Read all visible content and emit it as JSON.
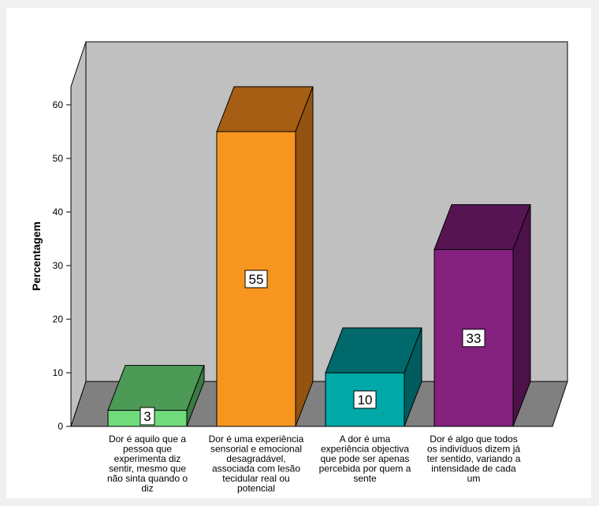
{
  "chart_data": {
    "type": "bar",
    "subtype": "3d-column",
    "title": "",
    "xlabel": "",
    "ylabel": "Percentagem",
    "ylim": [
      0,
      60
    ],
    "yticks": [
      0,
      10,
      20,
      30,
      40,
      50,
      60
    ],
    "grid": false,
    "legend": "none",
    "colors": {
      "background": "#f0f0f0",
      "wall": "#c0c0c0",
      "floor": "#808080"
    },
    "categories": [
      [
        "Dor é aquilo que a",
        "pessoa que",
        "experimenta diz",
        "sentir, mesmo que",
        "não sinta quando o",
        "diz"
      ],
      [
        "Dor é uma experiência",
        "sensorial e emocional",
        "desagradável,",
        "associada com lesão",
        "tecidular real ou",
        "potencial"
      ],
      [
        "A dor é uma",
        "experiência objectiva",
        "que pode ser apenas",
        "percebida por quem a",
        "sente"
      ],
      [
        "Dor é algo que todos",
        "os indivíduos dizem já",
        "ter sentido, variando a",
        "intensidade de cada",
        "um"
      ]
    ],
    "values": [
      3,
      55,
      10,
      33
    ],
    "data_labels": [
      "3",
      "55",
      "10",
      "33"
    ],
    "bar_colors": [
      {
        "front": "#6fdb7a",
        "top": "#4c9a55",
        "side": "#3c7a43"
      },
      {
        "front": "#f7961e",
        "top": "#a55e14",
        "side": "#94540f"
      },
      {
        "front": "#00a8a8",
        "top": "#00696b",
        "side": "#005c5e"
      },
      {
        "front": "#84207e",
        "top": "#571452",
        "side": "#4d1149"
      }
    ]
  }
}
